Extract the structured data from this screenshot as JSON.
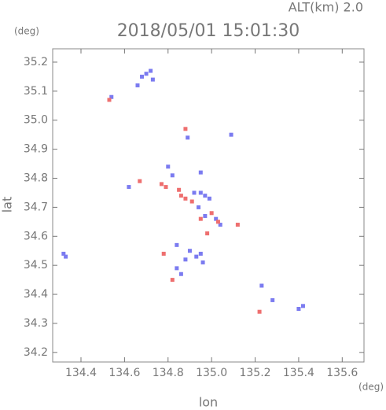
{
  "chart_data": {
    "type": "scatter",
    "altitude_label": "ALT(km) 2.0",
    "title": "2018/05/01 15:01:30",
    "y_unit": "(deg)",
    "x_unit": "(deg)",
    "ylabel": "lat",
    "xlabel": "lon",
    "xlim": [
      134.27,
      135.7
    ],
    "ylim": [
      34.167,
      35.246
    ],
    "xticks": [
      134.4,
      134.6,
      134.8,
      {
        "value": 135,
        "label": "135.0"
      },
      135.2,
      135.4,
      135.6
    ],
    "yticks": [
      34.2,
      34.3,
      34.4,
      34.5,
      34.6,
      34.7,
      34.8,
      34.9,
      {
        "value": 35,
        "label": "35.0"
      },
      35.1,
      35.2
    ],
    "series": [
      {
        "color": "#7b7bf0",
        "x": [
          134.7,
          134.72,
          134.68,
          134.66,
          134.73,
          134.54,
          134.89,
          135.09,
          134.95,
          134.8,
          134.82,
          134.92,
          134.95,
          134.97,
          134.99,
          134.94,
          134.97,
          135.02,
          135.04,
          134.9,
          134.93,
          134.95,
          134.88,
          134.84,
          134.86,
          134.33,
          134.32,
          135.23,
          135.28,
          135.4,
          135.42,
          134.84,
          134.96,
          134.62
        ],
        "values": [
          35.16,
          35.17,
          35.15,
          35.12,
          35.14,
          35.08,
          34.94,
          34.95,
          34.82,
          34.84,
          34.81,
          34.75,
          34.75,
          34.74,
          34.73,
          34.7,
          34.67,
          34.66,
          34.64,
          34.55,
          34.53,
          34.54,
          34.52,
          34.49,
          34.47,
          34.53,
          34.54,
          34.43,
          34.38,
          34.35,
          34.36,
          34.57,
          34.51,
          34.77
        ]
      },
      {
        "color": "#ee6f6f",
        "x": [
          134.53,
          134.88,
          134.67,
          134.77,
          134.79,
          134.85,
          134.88,
          134.91,
          135.0,
          135.03,
          134.98,
          135.12,
          134.78,
          134.82,
          135.22,
          134.86,
          134.95
        ],
        "values": [
          35.07,
          34.97,
          34.79,
          34.78,
          34.77,
          34.76,
          34.73,
          34.72,
          34.68,
          34.65,
          34.61,
          34.64,
          34.54,
          34.45,
          34.34,
          34.74,
          34.66
        ]
      }
    ]
  }
}
